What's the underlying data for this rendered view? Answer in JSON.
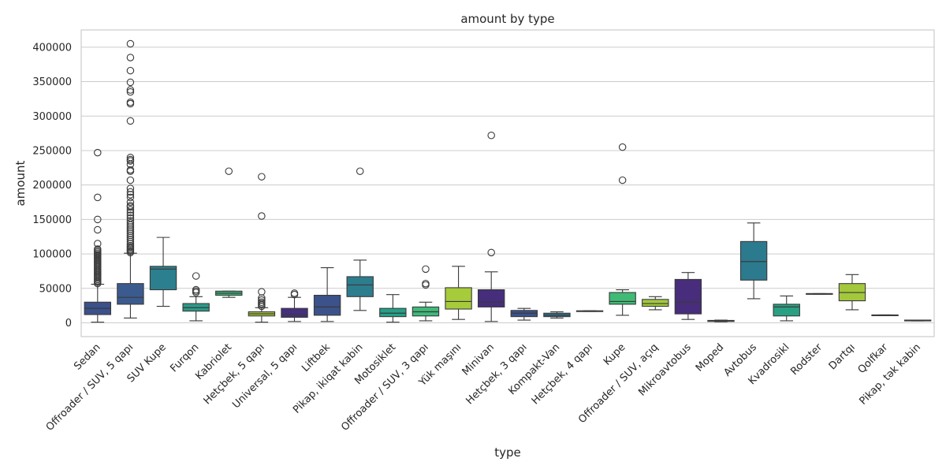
{
  "chart_data": {
    "type": "box",
    "title": "amount by type",
    "xlabel": "type",
    "ylabel": "amount",
    "ylim": [
      -20000,
      425000
    ],
    "yticks": [
      0,
      50000,
      100000,
      150000,
      200000,
      250000,
      300000,
      350000,
      400000
    ],
    "grid": "horizontal",
    "categories": [
      "Sedan",
      "Offroader / SUV, 5 qapı",
      "SUV Kupe",
      "Furqon",
      "Kabriolet",
      "Hetçbek, 5 qapı",
      "Universal, 5 qapı",
      "Liftbek",
      "Pikap, ikiqat kabin",
      "Motosiklet",
      "Offroader / SUV, 3 qapı",
      "Yük maşını",
      "Minivan",
      "Hetçbek, 3 qapı",
      "Kompakt-Van",
      "Hetçbek, 4 qapı",
      "Kupe",
      "Offroader / SUV, açıq",
      "Mikroavtobus",
      "Moped",
      "Avtobus",
      "Kvadrosikl",
      "Rodster",
      "Dartqı",
      "Qolfkar",
      "Pikap, tək kabin"
    ],
    "boxes": [
      {
        "q1": 12000,
        "median": 21000,
        "q3": 30000,
        "whisker_low": 1000,
        "whisker_high": 56000,
        "color": "#3b518b",
        "outliers": [
          57000,
          59000,
          61000,
          63000,
          65000,
          67000,
          69000,
          71000,
          73000,
          75000,
          77000,
          79000,
          81000,
          83000,
          85000,
          87000,
          89000,
          91000,
          93000,
          95000,
          97000,
          99000,
          101000,
          103000,
          105000,
          107000,
          115000,
          135000,
          150000,
          182000,
          247000
        ]
      },
      {
        "q1": 27000,
        "median": 37000,
        "q3": 57000,
        "whisker_low": 7000,
        "whisker_high": 101000,
        "color": "#3b5b8f",
        "outliers": [
          102000,
          104000,
          106000,
          108000,
          110000,
          112000,
          115000,
          118000,
          121000,
          124000,
          127000,
          130000,
          133000,
          136000,
          139000,
          142000,
          145000,
          148000,
          152000,
          156000,
          160000,
          164000,
          168000,
          170000,
          175000,
          182000,
          186000,
          190000,
          195000,
          207000,
          220000,
          222000,
          230000,
          235000,
          237000,
          240000,
          293000,
          318000,
          320000,
          335000,
          338000,
          349000,
          366000,
          385000,
          405000
        ]
      },
      {
        "q1": 48000,
        "median": 78000,
        "q3": 82000,
        "whisker_low": 24000,
        "whisker_high": 124000,
        "color": "#2c7f8e",
        "outliers": []
      },
      {
        "q1": 17000,
        "median": 22000,
        "q3": 28000,
        "whisker_low": 3000,
        "whisker_high": 38000,
        "color": "#2a9a89",
        "outliers": [
          44000,
          46000,
          48000,
          68000
        ]
      },
      {
        "q1": 40000,
        "median": 43000,
        "q3": 46000,
        "whisker_low": 37000,
        "whisker_high": 46000,
        "color": "#38b077",
        "outliers": [
          220000
        ]
      },
      {
        "q1": 10000,
        "median": 13000,
        "q3": 16000,
        "whisker_low": 1000,
        "whisker_high": 22000,
        "color": "#a5c63b",
        "outliers": [
          24000,
          26000,
          28000,
          30000,
          33000,
          36000,
          45000,
          155000,
          212000
        ]
      },
      {
        "q1": 8000,
        "median": 12000,
        "q3": 21000,
        "whisker_low": 2000,
        "whisker_high": 37000,
        "color": "#45307f",
        "outliers": [
          41000,
          43000
        ]
      },
      {
        "q1": 11000,
        "median": 23000,
        "q3": 40000,
        "whisker_low": 2000,
        "whisker_high": 80000,
        "color": "#3b528b",
        "outliers": []
      },
      {
        "q1": 38000,
        "median": 55000,
        "q3": 67000,
        "whisker_low": 18000,
        "whisker_high": 91000,
        "color": "#2c7d8e",
        "outliers": [
          220000
        ]
      },
      {
        "q1": 9000,
        "median": 14000,
        "q3": 21000,
        "whisker_low": 1000,
        "whisker_high": 41000,
        "color": "#23a087",
        "outliers": []
      },
      {
        "q1": 10000,
        "median": 16000,
        "q3": 23000,
        "whisker_low": 3000,
        "whisker_high": 30000,
        "color": "#3fb97a",
        "outliers": [
          55000,
          57000,
          78000
        ]
      },
      {
        "q1": 20000,
        "median": 31000,
        "q3": 51000,
        "whisker_low": 5000,
        "whisker_high": 82000,
        "color": "#a6cb3b",
        "outliers": []
      },
      {
        "q1": 23000,
        "median": 30000,
        "q3": 48000,
        "whisker_low": 2000,
        "whisker_high": 74000,
        "color": "#472e7c",
        "outliers": [
          102000,
          272000
        ]
      },
      {
        "q1": 9000,
        "median": 14000,
        "q3": 18000,
        "whisker_low": 4000,
        "whisker_high": 21000,
        "color": "#3b528b",
        "outliers": []
      },
      {
        "q1": 9000,
        "median": 11000,
        "q3": 14000,
        "whisker_low": 7000,
        "whisker_high": 16000,
        "color": "#2c728e",
        "outliers": []
      },
      {
        "q1": 16500,
        "median": 17000,
        "q3": 17500,
        "whisker_low": 16500,
        "whisker_high": 17500,
        "color": "#26908c",
        "outliers": []
      },
      {
        "q1": 27000,
        "median": 31000,
        "q3": 44000,
        "whisker_low": 11000,
        "whisker_high": 48000,
        "color": "#3fbb75",
        "outliers": [
          207000,
          255000
        ]
      },
      {
        "q1": 24000,
        "median": 28000,
        "q3": 34000,
        "whisker_low": 19000,
        "whisker_high": 38000,
        "color": "#a2c83d",
        "outliers": []
      },
      {
        "q1": 13000,
        "median": 30000,
        "q3": 63000,
        "whisker_low": 5000,
        "whisker_high": 73000,
        "color": "#472d7b",
        "outliers": []
      },
      {
        "q1": 2000,
        "median": 2800,
        "q3": 3500,
        "whisker_low": 1500,
        "whisker_high": 4000,
        "color": "#3b528b",
        "outliers": []
      },
      {
        "q1": 62000,
        "median": 89000,
        "q3": 118000,
        "whisker_low": 35000,
        "whisker_high": 145000,
        "color": "#2c7a8e",
        "outliers": []
      },
      {
        "q1": 10000,
        "median": 23000,
        "q3": 27000,
        "whisker_low": 3000,
        "whisker_high": 39000,
        "color": "#2aa083",
        "outliers": []
      },
      {
        "q1": 41500,
        "median": 42000,
        "q3": 42500,
        "whisker_low": 41500,
        "whisker_high": 42500,
        "color": "#3fb97a",
        "outliers": []
      },
      {
        "q1": 32000,
        "median": 44000,
        "q3": 57000,
        "whisker_low": 19000,
        "whisker_high": 70000,
        "color": "#a3c83c",
        "outliers": []
      },
      {
        "q1": 10500,
        "median": 11000,
        "q3": 11500,
        "whisker_low": 10500,
        "whisker_high": 11500,
        "color": "#472e7c",
        "outliers": []
      },
      {
        "q1": 2800,
        "median": 3500,
        "q3": 4000,
        "whisker_low": 2800,
        "whisker_high": 4000,
        "color": "#3b528b",
        "outliers": []
      }
    ]
  }
}
